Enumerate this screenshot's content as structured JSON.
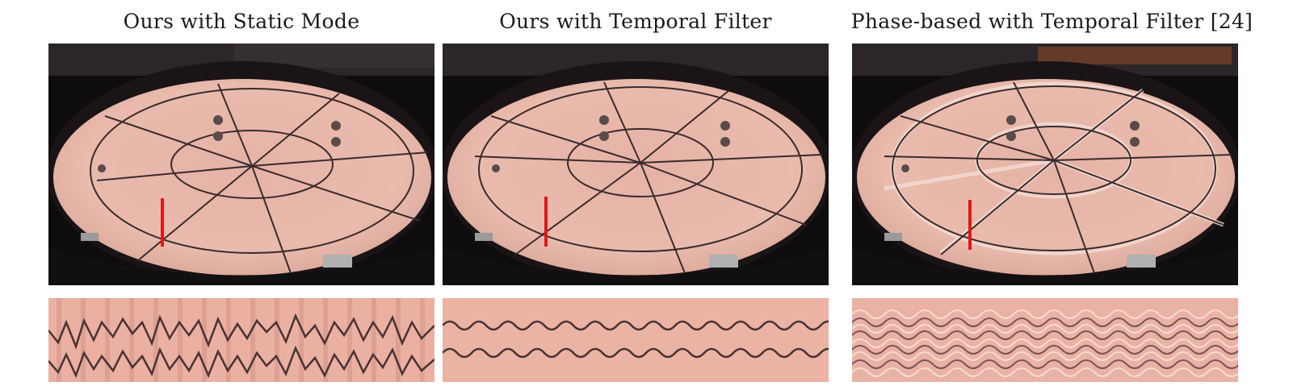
{
  "figure": {
    "columns": [
      {
        "title": "Ours with Static Mode"
      },
      {
        "title": "Ours with Temporal Filter"
      },
      {
        "title": "Phase-based with Temporal Filter [24]"
      }
    ]
  },
  "colors": {
    "membrane": "#e8b5a8",
    "rim": "#1a1416",
    "line": "#3a2a2c",
    "marker": "#e01818",
    "strip_bg": "#ebb3a4"
  }
}
